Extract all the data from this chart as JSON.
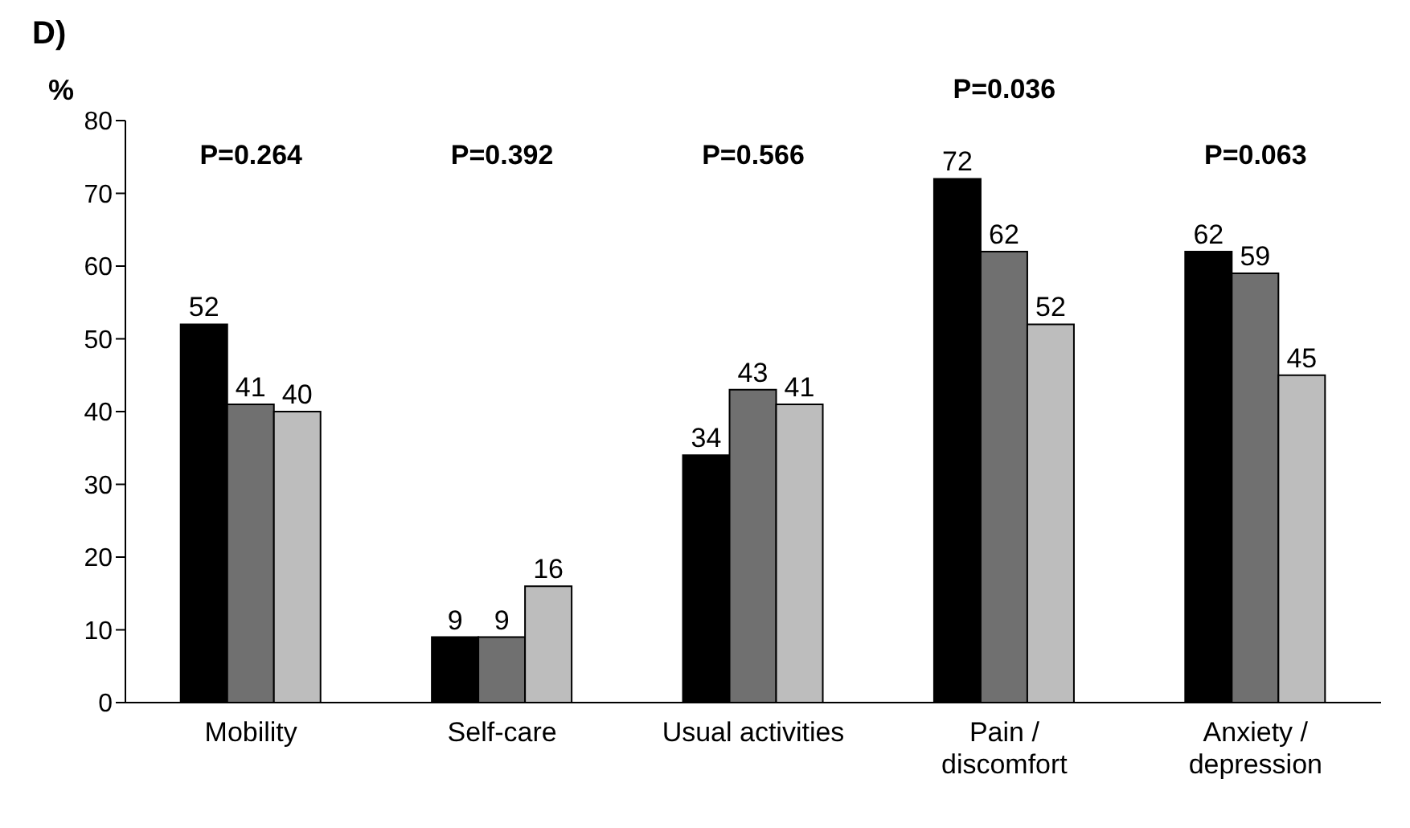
{
  "chart_data": {
    "type": "bar",
    "title": "D)",
    "ylabel": "%",
    "categories": [
      "Mobility",
      "Self-care",
      "Usual activities",
      "Pain / discomfort",
      "Anxiety / depression"
    ],
    "series": [
      {
        "color": "#000000",
        "values": [
          52,
          9,
          34,
          72,
          62
        ]
      },
      {
        "color": "#707070",
        "values": [
          41,
          9,
          43,
          62,
          59
        ]
      },
      {
        "color": "#bdbdbd",
        "values": [
          40,
          16,
          41,
          52,
          45
        ]
      }
    ],
    "ylim": [
      0,
      80
    ],
    "yticks": [
      0,
      10,
      20,
      30,
      40,
      50,
      60,
      70,
      80
    ],
    "data_labels": true,
    "grid": false,
    "legend": false,
    "annotations": [
      "P=0.264",
      "P=0.392",
      "P=0.566",
      "P=0.036",
      "P=0.063"
    ]
  }
}
